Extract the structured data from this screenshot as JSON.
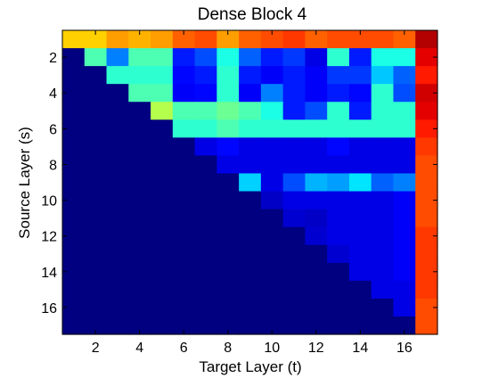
{
  "chart_data": {
    "type": "heatmap",
    "title": "Dense Block 4",
    "xlabel": "Target Layer (t)",
    "ylabel": "Source Layer (s)",
    "x_range": [
      1,
      17
    ],
    "y_range": [
      1,
      17
    ],
    "x_ticks": [
      "2",
      "4",
      "6",
      "8",
      "10",
      "12",
      "14",
      "16"
    ],
    "y_ticks": [
      "2",
      "4",
      "6",
      "8",
      "10",
      "12",
      "14",
      "16"
    ],
    "colormap": "jet",
    "value_range": [
      0,
      1
    ],
    "note_missing": "cells below the diagonal (source > target) are empty / zero",
    "values": [
      [
        0.67,
        0.67,
        0.72,
        0.7,
        0.72,
        0.78,
        0.8,
        0.72,
        0.78,
        0.8,
        0.82,
        0.78,
        0.8,
        0.8,
        0.8,
        0.78,
        0.95
      ],
      [
        0.0,
        0.45,
        0.25,
        0.45,
        0.45,
        0.15,
        0.2,
        0.4,
        0.22,
        0.15,
        0.18,
        0.1,
        0.42,
        0.15,
        0.4,
        0.4,
        0.9
      ],
      [
        0.0,
        0.0,
        0.42,
        0.42,
        0.42,
        0.13,
        0.15,
        0.42,
        0.15,
        0.12,
        0.15,
        0.12,
        0.18,
        0.18,
        0.32,
        0.22,
        0.85
      ],
      [
        0.0,
        0.0,
        0.0,
        0.45,
        0.45,
        0.12,
        0.13,
        0.42,
        0.12,
        0.25,
        0.15,
        0.12,
        0.15,
        0.13,
        0.42,
        0.2,
        0.92
      ],
      [
        0.0,
        0.0,
        0.0,
        0.0,
        0.55,
        0.45,
        0.45,
        0.48,
        0.45,
        0.4,
        0.15,
        0.2,
        0.42,
        0.15,
        0.42,
        0.42,
        0.9
      ],
      [
        0.0,
        0.0,
        0.0,
        0.0,
        0.0,
        0.42,
        0.42,
        0.45,
        0.42,
        0.42,
        0.42,
        0.42,
        0.42,
        0.42,
        0.42,
        0.42,
        0.85
      ],
      [
        0.0,
        0.0,
        0.0,
        0.0,
        0.0,
        0.0,
        0.1,
        0.13,
        0.1,
        0.1,
        0.1,
        0.1,
        0.13,
        0.1,
        0.1,
        0.1,
        0.82
      ],
      [
        0.0,
        0.0,
        0.0,
        0.0,
        0.0,
        0.0,
        0.0,
        0.1,
        0.1,
        0.1,
        0.1,
        0.1,
        0.1,
        0.1,
        0.1,
        0.1,
        0.8
      ],
      [
        0.0,
        0.0,
        0.0,
        0.0,
        0.0,
        0.0,
        0.0,
        0.0,
        0.33,
        0.1,
        0.2,
        0.3,
        0.28,
        0.35,
        0.22,
        0.25,
        0.8
      ],
      [
        0.0,
        0.0,
        0.0,
        0.0,
        0.0,
        0.0,
        0.0,
        0.0,
        0.0,
        0.07,
        0.1,
        0.1,
        0.1,
        0.1,
        0.1,
        0.12,
        0.8
      ],
      [
        0.0,
        0.0,
        0.0,
        0.0,
        0.0,
        0.0,
        0.0,
        0.0,
        0.0,
        0.0,
        0.08,
        0.07,
        0.1,
        0.1,
        0.1,
        0.12,
        0.8
      ],
      [
        0.0,
        0.0,
        0.0,
        0.0,
        0.0,
        0.0,
        0.0,
        0.0,
        0.0,
        0.0,
        0.0,
        0.08,
        0.1,
        0.1,
        0.1,
        0.12,
        0.82
      ],
      [
        0.0,
        0.0,
        0.0,
        0.0,
        0.0,
        0.0,
        0.0,
        0.0,
        0.0,
        0.0,
        0.0,
        0.0,
        0.08,
        0.1,
        0.1,
        0.12,
        0.82
      ],
      [
        0.0,
        0.0,
        0.0,
        0.0,
        0.0,
        0.0,
        0.0,
        0.0,
        0.0,
        0.0,
        0.0,
        0.0,
        0.0,
        0.1,
        0.1,
        0.12,
        0.82
      ],
      [
        0.0,
        0.0,
        0.0,
        0.0,
        0.0,
        0.0,
        0.0,
        0.0,
        0.0,
        0.0,
        0.0,
        0.0,
        0.0,
        0.0,
        0.1,
        0.1,
        0.82
      ],
      [
        0.0,
        0.0,
        0.0,
        0.0,
        0.0,
        0.0,
        0.0,
        0.0,
        0.0,
        0.0,
        0.0,
        0.0,
        0.0,
        0.0,
        0.0,
        0.1,
        0.8
      ],
      [
        0.0,
        0.0,
        0.0,
        0.0,
        0.0,
        0.0,
        0.0,
        0.0,
        0.0,
        0.0,
        0.0,
        0.0,
        0.0,
        0.0,
        0.0,
        0.0,
        0.8
      ]
    ]
  }
}
